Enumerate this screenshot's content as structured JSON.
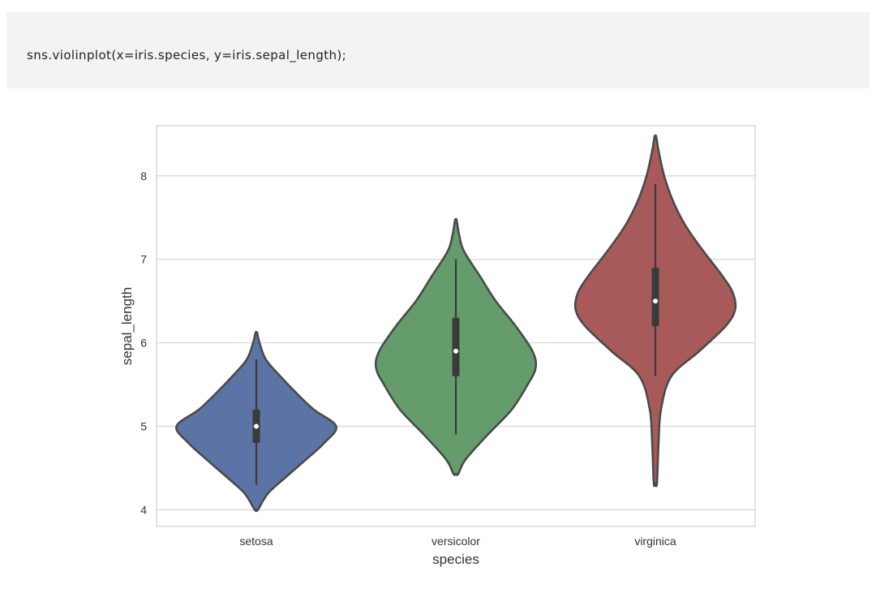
{
  "code_cell": {
    "code": "sns.violinplot(x=iris.species, y=iris.sepal_length);"
  },
  "chart_data": {
    "type": "violin",
    "xlabel": "species",
    "ylabel": "sepal_length",
    "ylim": [
      3.8,
      8.6
    ],
    "yticks": [
      4,
      5,
      6,
      7,
      8
    ],
    "ytick_labels": [
      "4",
      "5",
      "6",
      "7",
      "8"
    ],
    "grid": true,
    "categories": [
      "setosa",
      "versicolor",
      "virginica"
    ],
    "colors": [
      "#5b74a5",
      "#649d6b",
      "#a85a5a"
    ],
    "violins": [
      {
        "category": "setosa",
        "min": 4.3,
        "q1": 4.8,
        "median": 5.0,
        "q3": 5.2,
        "max": 5.8,
        "density": [
          [
            4.0,
            0.02
          ],
          [
            4.2,
            0.15
          ],
          [
            4.4,
            0.38
          ],
          [
            4.6,
            0.62
          ],
          [
            4.8,
            0.85
          ],
          [
            5.0,
            1.0
          ],
          [
            5.2,
            0.72
          ],
          [
            5.4,
            0.5
          ],
          [
            5.6,
            0.3
          ],
          [
            5.8,
            0.12
          ],
          [
            6.0,
            0.04
          ],
          [
            6.12,
            0.01
          ]
        ]
      },
      {
        "category": "versicolor",
        "min": 4.9,
        "q1": 5.6,
        "median": 5.9,
        "q3": 6.3,
        "max": 7.0,
        "density": [
          [
            4.43,
            0.03
          ],
          [
            4.6,
            0.12
          ],
          [
            4.9,
            0.4
          ],
          [
            5.2,
            0.7
          ],
          [
            5.5,
            0.9
          ],
          [
            5.7,
            1.0
          ],
          [
            5.9,
            0.96
          ],
          [
            6.2,
            0.75
          ],
          [
            6.5,
            0.5
          ],
          [
            6.8,
            0.3
          ],
          [
            7.1,
            0.1
          ],
          [
            7.3,
            0.04
          ],
          [
            7.47,
            0.01
          ]
        ]
      },
      {
        "category": "virginica",
        "min": 5.6,
        "q1": 6.2,
        "median": 6.5,
        "q3": 6.9,
        "max": 7.9,
        "density": [
          [
            4.32,
            0.02
          ],
          [
            4.8,
            0.04
          ],
          [
            5.2,
            0.07
          ],
          [
            5.6,
            0.2
          ],
          [
            5.9,
            0.55
          ],
          [
            6.2,
            0.88
          ],
          [
            6.4,
            1.0
          ],
          [
            6.6,
            0.97
          ],
          [
            6.8,
            0.84
          ],
          [
            7.1,
            0.6
          ],
          [
            7.4,
            0.38
          ],
          [
            7.7,
            0.22
          ],
          [
            8.0,
            0.11
          ],
          [
            8.3,
            0.04
          ],
          [
            8.47,
            0.01
          ]
        ]
      }
    ]
  }
}
